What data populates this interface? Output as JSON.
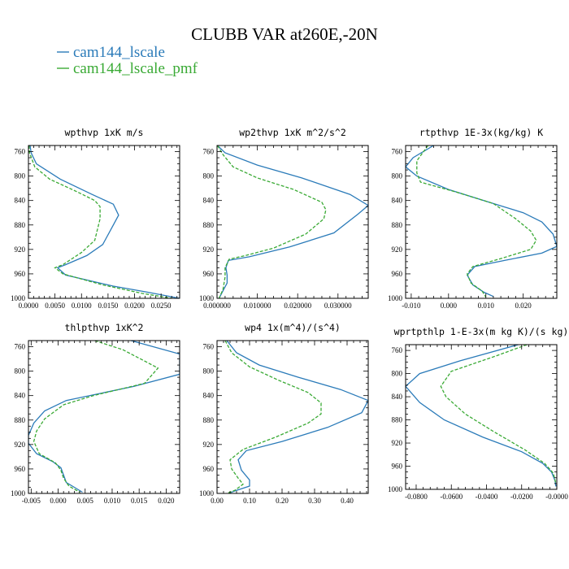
{
  "title": "CLUBB VAR at260E,-20N",
  "colors": {
    "cam144_lscale": "#2b7bb9",
    "cam144_lscale_pmf": "#3aaa35",
    "frame": "#000000"
  },
  "legend": [
    {
      "name": "cam144_lscale",
      "color": "#2b7bb9",
      "dash": "solid"
    },
    {
      "name": "cam144_lscale_pmf",
      "color": "#3aaa35",
      "dash": "dashed"
    }
  ],
  "chart_data": [
    {
      "type": "line",
      "title": "wpthvp  1xK m/s",
      "xlim": [
        0,
        0.0285
      ],
      "ylim": [
        750,
        1000
      ],
      "y_inverted": true,
      "xticks": [
        0,
        0.005,
        0.01,
        0.015,
        0.02,
        0.025
      ],
      "xtick_labels": [
        "0.0000",
        "0.0050",
        "0.0100",
        "0.0150",
        "0.0200",
        "0.0250"
      ],
      "yticks": [
        760,
        800,
        840,
        880,
        920,
        960,
        1000
      ],
      "ytick_labels": [
        "760",
        "800",
        "840",
        "880",
        "920",
        "960",
        "1000"
      ],
      "series": [
        {
          "name": "cam144_lscale",
          "points": [
            [
              0.0003,
              750
            ],
            [
              0.0005,
              762
            ],
            [
              0.0015,
              780
            ],
            [
              0.006,
              805
            ],
            [
              0.012,
              830
            ],
            [
              0.016,
              846
            ],
            [
              0.017,
              864
            ],
            [
              0.016,
              880
            ],
            [
              0.014,
              912
            ],
            [
              0.011,
              930
            ],
            [
              0.007,
              945
            ],
            [
              0.0055,
              950
            ],
            [
              0.007,
              962
            ],
            [
              0.016,
              980
            ],
            [
              0.0225,
              990
            ],
            [
              0.0285,
              1000
            ]
          ]
        },
        {
          "name": "cam144_lscale_pmf",
          "points": [
            [
              0.0001,
              750
            ],
            [
              0.0002,
              762
            ],
            [
              0.0012,
              785
            ],
            [
              0.004,
              805
            ],
            [
              0.009,
              825
            ],
            [
              0.0125,
              840
            ],
            [
              0.0135,
              850
            ],
            [
              0.0135,
              870
            ],
            [
              0.0125,
              905
            ],
            [
              0.01,
              925
            ],
            [
              0.0065,
              945
            ],
            [
              0.005,
              950
            ],
            [
              0.0065,
              960
            ],
            [
              0.014,
              978
            ],
            [
              0.0215,
              992
            ],
            [
              0.027,
              1000
            ]
          ]
        }
      ]
    },
    {
      "type": "line",
      "title": "wp2thvp  1xK m^2/s^2",
      "xlim": [
        0,
        0.0375
      ],
      "ylim": [
        750,
        1000
      ],
      "y_inverted": true,
      "xticks": [
        0,
        0.01,
        0.02,
        0.03
      ],
      "xtick_labels": [
        "0.000000",
        "0.010000",
        "0.020000",
        "0.030000"
      ],
      "yticks": [
        760,
        800,
        840,
        880,
        920,
        960,
        1000
      ],
      "ytick_labels": [
        "760",
        "800",
        "840",
        "880",
        "920",
        "960",
        "1000"
      ],
      "series": [
        {
          "name": "cam144_lscale",
          "points": [
            [
              0.0001,
              750
            ],
            [
              0.002,
              762
            ],
            [
              0.01,
              782
            ],
            [
              0.021,
              803
            ],
            [
              0.033,
              830
            ],
            [
              0.0375,
              848
            ],
            [
              0.035,
              862
            ],
            [
              0.029,
              893
            ],
            [
              0.018,
              916
            ],
            [
              0.008,
              932
            ],
            [
              0.0028,
              938
            ],
            [
              0.0022,
              950
            ],
            [
              0.0025,
              962
            ],
            [
              0.0025,
              975
            ],
            [
              0.0017,
              985
            ],
            [
              0.0005,
              1000
            ]
          ]
        },
        {
          "name": "cam144_lscale_pmf",
          "points": [
            [
              0.0001,
              750
            ],
            [
              0.0015,
              765
            ],
            [
              0.004,
              785
            ],
            [
              0.01,
              803
            ],
            [
              0.019,
              822
            ],
            [
              0.026,
              843
            ],
            [
              0.027,
              855
            ],
            [
              0.0265,
              870
            ],
            [
              0.022,
              895
            ],
            [
              0.014,
              918
            ],
            [
              0.007,
              930
            ],
            [
              0.003,
              936
            ],
            [
              0.002,
              950
            ],
            [
              0.002,
              965
            ],
            [
              0.0015,
              985
            ],
            [
              0.0005,
              1000
            ]
          ]
        }
      ]
    },
    {
      "type": "line",
      "title": "rtpthvp  1E-3x(kg/kg) K",
      "xlim": [
        -0.0115,
        0.029
      ],
      "ylim": [
        750,
        1000
      ],
      "y_inverted": true,
      "xticks": [
        -0.01,
        0,
        0.01,
        0.02
      ],
      "xtick_labels": [
        "-0.010",
        "0.000",
        "0.010",
        "0.020"
      ],
      "yticks": [
        760,
        800,
        840,
        880,
        920,
        960,
        1000
      ],
      "ytick_labels": [
        "760",
        "800",
        "840",
        "880",
        "920",
        "960",
        "1000"
      ],
      "series": [
        {
          "name": "cam144_lscale",
          "points": [
            [
              -0.004,
              750
            ],
            [
              -0.0095,
              770
            ],
            [
              -0.0115,
              785
            ],
            [
              -0.0085,
              800
            ],
            [
              0,
              822
            ],
            [
              0.012,
              845
            ],
            [
              0.02,
              860
            ],
            [
              0.025,
              875
            ],
            [
              0.028,
              895
            ],
            [
              0.029,
              915
            ],
            [
              0.025,
              926
            ],
            [
              0.015,
              938
            ],
            [
              0.007,
              948
            ],
            [
              0.005,
              962
            ],
            [
              0.0065,
              978
            ],
            [
              0.0095,
              990
            ],
            [
              0.012,
              997
            ]
          ]
        },
        {
          "name": "cam144_lscale_pmf",
          "points": [
            [
              -0.0055,
              750
            ],
            [
              -0.0085,
              775
            ],
            [
              -0.0085,
              795
            ],
            [
              -0.0075,
              810
            ],
            [
              0.002,
              826
            ],
            [
              0.012,
              845
            ],
            [
              0.018,
              870
            ],
            [
              0.022,
              890
            ],
            [
              0.0235,
              905
            ],
            [
              0.022,
              920
            ],
            [
              0.014,
              935
            ],
            [
              0.0065,
              948
            ],
            [
              0.005,
              960
            ],
            [
              0.006,
              975
            ],
            [
              0.009,
              988
            ],
            [
              0.01,
              998
            ]
          ]
        }
      ]
    },
    {
      "type": "line",
      "title": "thlpthvp  1xK^2",
      "xlim": [
        -0.0055,
        0.0225
      ],
      "ylim": [
        750,
        1000
      ],
      "y_inverted": true,
      "xticks": [
        -0.005,
        0,
        0.005,
        0.01,
        0.015,
        0.02
      ],
      "xtick_labels": [
        "-0.005",
        "0.000",
        "0.005",
        "0.010",
        "0.015",
        "0.020"
      ],
      "yticks": [
        760,
        800,
        840,
        880,
        920,
        960,
        1000
      ],
      "ytick_labels": [
        "760",
        "800",
        "840",
        "880",
        "920",
        "960",
        "1000"
      ],
      "series": [
        {
          "name": "cam144_lscale",
          "points": [
            [
              0.0135,
              750
            ],
            [
              0.0225,
              772
            ],
            [
              0.0225,
              805
            ],
            [
              0.014,
              825
            ],
            [
              0.0015,
              848
            ],
            [
              -0.0025,
              865
            ],
            [
              -0.0045,
              885
            ],
            [
              -0.0055,
              905
            ],
            [
              -0.0055,
              918
            ],
            [
              -0.004,
              935
            ],
            [
              -0.001,
              948
            ],
            [
              0.0005,
              958
            ],
            [
              0.001,
              970
            ],
            [
              0.0015,
              982
            ],
            [
              0.003,
              990
            ],
            [
              0.0045,
              998
            ]
          ]
        },
        {
          "name": "cam144_lscale_pmf",
          "points": [
            [
              0.0068,
              750
            ],
            [
              0.012,
              765
            ],
            [
              0.0185,
              795
            ],
            [
              0.016,
              820
            ],
            [
              0.0065,
              840
            ],
            [
              0.001,
              855
            ],
            [
              -0.0025,
              878
            ],
            [
              -0.004,
              898
            ],
            [
              -0.0045,
              915
            ],
            [
              -0.0035,
              935
            ],
            [
              -0.0005,
              950
            ],
            [
              0.0005,
              962
            ],
            [
              0.001,
              975
            ],
            [
              0.002,
              988
            ],
            [
              0.004,
              998
            ]
          ]
        }
      ]
    },
    {
      "type": "line",
      "title": "wp4  1x(m^4)/(s^4)",
      "xlim": [
        0,
        0.465
      ],
      "ylim": [
        750,
        1000
      ],
      "y_inverted": true,
      "xticks": [
        0,
        0.1,
        0.2,
        0.3,
        0.4
      ],
      "xtick_labels": [
        "0.00",
        "0.10",
        "0.20",
        "0.30",
        "0.40"
      ],
      "yticks": [
        760,
        800,
        840,
        880,
        920,
        960,
        1000
      ],
      "ytick_labels": [
        "760",
        "800",
        "840",
        "880",
        "920",
        "960",
        "1000"
      ],
      "series": [
        {
          "name": "cam144_lscale",
          "points": [
            [
              0.03,
              750
            ],
            [
              0.06,
              770
            ],
            [
              0.13,
              790
            ],
            [
              0.25,
              810
            ],
            [
              0.38,
              830
            ],
            [
              0.465,
              848
            ],
            [
              0.445,
              868
            ],
            [
              0.34,
              892
            ],
            [
              0.2,
              915
            ],
            [
              0.09,
              930
            ],
            [
              0.065,
              945
            ],
            [
              0.075,
              962
            ],
            [
              0.1,
              978
            ],
            [
              0.1,
              988
            ],
            [
              0.06,
              995
            ],
            [
              0.035,
              1000
            ]
          ]
        },
        {
          "name": "cam144_lscale_pmf",
          "points": [
            [
              0.025,
              750
            ],
            [
              0.045,
              770
            ],
            [
              0.1,
              793
            ],
            [
              0.19,
              815
            ],
            [
              0.28,
              835
            ],
            [
              0.32,
              852
            ],
            [
              0.32,
              870
            ],
            [
              0.28,
              885
            ],
            [
              0.18,
              908
            ],
            [
              0.08,
              928
            ],
            [
              0.04,
              945
            ],
            [
              0.045,
              960
            ],
            [
              0.065,
              975
            ],
            [
              0.08,
              985
            ],
            [
              0.055,
              995
            ],
            [
              0.03,
              1000
            ]
          ]
        }
      ]
    },
    {
      "type": "line",
      "title": "wprtpthlp  1-E-3x(m kg K)/(s kg)",
      "xlim": [
        -0.086,
        0
      ],
      "ylim": [
        750,
        1000
      ],
      "y_inverted": true,
      "xticks": [
        -0.08,
        -0.06,
        -0.04,
        -0.02,
        0
      ],
      "xtick_labels": [
        "-0.0800",
        "-0.0600",
        "-0.0400",
        "-0.0200",
        "-0.0000"
      ],
      "yticks": [
        760,
        800,
        840,
        880,
        920,
        960,
        1000
      ],
      "ytick_labels": [
        "760",
        "800",
        "840",
        "880",
        "920",
        "960",
        "1000"
      ],
      "series": [
        {
          "name": "cam144_lscale",
          "points": [
            [
              -0.022,
              750
            ],
            [
              -0.055,
              778
            ],
            [
              -0.078,
              800
            ],
            [
              -0.086,
              822
            ],
            [
              -0.078,
              850
            ],
            [
              -0.064,
              880
            ],
            [
              -0.042,
              910
            ],
            [
              -0.02,
              935
            ],
            [
              -0.008,
              955
            ],
            [
              -0.003,
              970
            ],
            [
              -0.001,
              985
            ],
            [
              -0.0005,
              995
            ]
          ]
        },
        {
          "name": "cam144_lscale_pmf",
          "points": [
            [
              -0.017,
              750
            ],
            [
              -0.035,
              770
            ],
            [
              -0.06,
              796
            ],
            [
              -0.066,
              822
            ],
            [
              -0.063,
              840
            ],
            [
              -0.052,
              870
            ],
            [
              -0.036,
              900
            ],
            [
              -0.018,
              932
            ],
            [
              -0.007,
              955
            ],
            [
              -0.002,
              972
            ],
            [
              -0.0005,
              990
            ]
          ]
        }
      ]
    }
  ]
}
